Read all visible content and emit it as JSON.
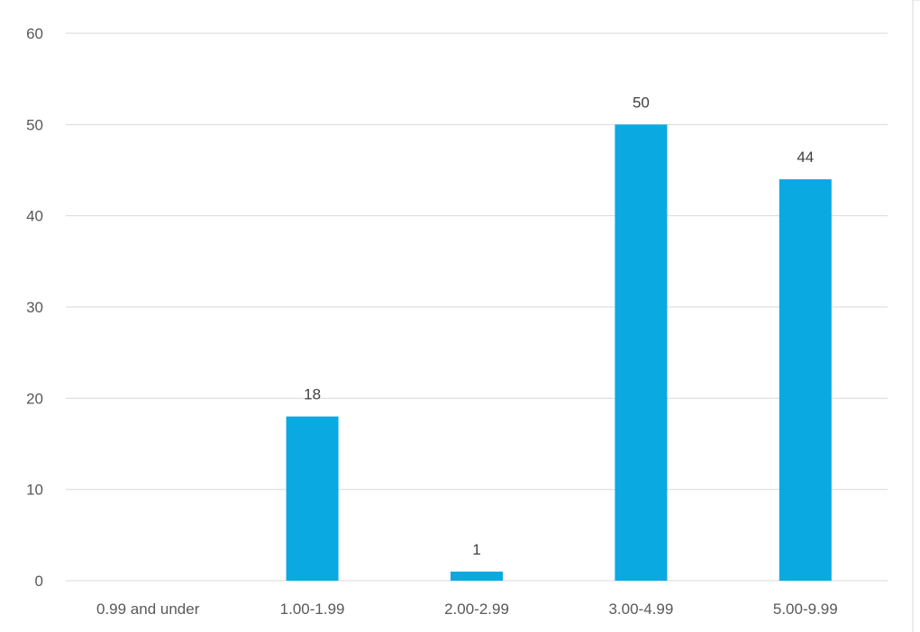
{
  "chart_data": {
    "type": "bar",
    "categories": [
      "0.99 and under",
      "1.00-1.99",
      "2.00-2.99",
      "3.00-4.99",
      "5.00-9.99"
    ],
    "values": [
      0,
      18,
      1,
      50,
      44
    ],
    "data_labels": [
      "",
      "18",
      "1",
      "50",
      "44"
    ],
    "title": "",
    "xlabel": "",
    "ylabel": "",
    "ylim": [
      0,
      60
    ],
    "yticks": [
      "0",
      "10",
      "20",
      "30",
      "40",
      "50",
      "60"
    ],
    "grid": true,
    "legend": "none",
    "colors": {
      "bar": "#0aa9e2",
      "grid": "#d9d9d9",
      "tick_text": "#595959",
      "label_text": "#404040",
      "frame": "#d9d9d9"
    }
  }
}
